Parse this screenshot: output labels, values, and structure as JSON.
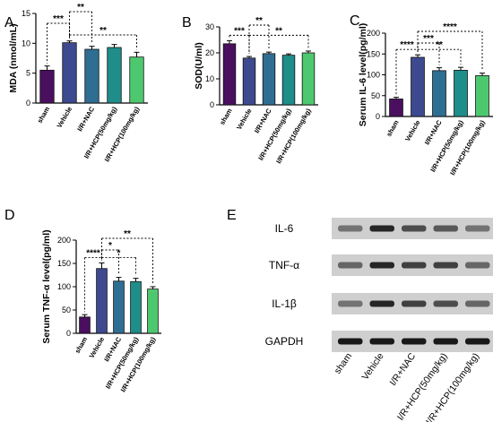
{
  "colors": {
    "bars": [
      "#4a0f5f",
      "#3d4a8f",
      "#2f6e93",
      "#1f8d8a",
      "#4ec86f"
    ]
  },
  "chart_data": [
    {
      "panel": "A",
      "type": "bar",
      "ylabel": "MDA (nmol/mL)",
      "categories": [
        "sham",
        "Vehicle",
        "I/R+NAC",
        "I/R+HCP(50mg/kg)",
        "I/R+HCP(100mg/kg)"
      ],
      "values": [
        5.5,
        10.1,
        9.0,
        9.3,
        7.7
      ],
      "errors": [
        0.7,
        0.3,
        0.5,
        0.5,
        0.8
      ],
      "ylim": [
        0,
        15
      ],
      "yticks": [
        "0",
        "5",
        "10",
        "15"
      ],
      "comparisons": [
        {
          "from": 1,
          "to": 2,
          "label": "**"
        },
        {
          "from": 0,
          "to": 1,
          "label": "***"
        },
        {
          "from": 1,
          "to": 4,
          "label": "**"
        }
      ]
    },
    {
      "panel": "B",
      "type": "bar",
      "ylabel": "SOD(U/ml)",
      "categories": [
        "sham",
        "Vehicle",
        "I/R+NAC",
        "I/R+HCP(50mg/kg)",
        "I/R+HCP(100mg/kg)"
      ],
      "values": [
        23.5,
        18.0,
        19.7,
        19.1,
        20.0
      ],
      "errors": [
        1.2,
        0.6,
        0.6,
        0.5,
        0.7
      ],
      "ylim": [
        0,
        30
      ],
      "yticks": [
        "0",
        "10",
        "20",
        "30"
      ],
      "comparisons": [
        {
          "from": 1,
          "to": 2,
          "label": "**"
        },
        {
          "from": 0,
          "to": 1,
          "label": "***"
        },
        {
          "from": 1,
          "to": 4,
          "label": "**"
        }
      ]
    },
    {
      "panel": "C",
      "type": "bar",
      "ylabel": "Serum IL-6 level(pg/ml)",
      "categories": [
        "sham",
        "Vehicle",
        "I/R+NAC",
        "I/R+HCP(50mg/kg)",
        "I/R+HCP(100mg/kg)"
      ],
      "values": [
        42,
        142,
        110,
        111,
        98
      ],
      "errors": [
        4,
        6,
        7,
        7,
        6
      ],
      "ylim": [
        0,
        200
      ],
      "yticks": [
        "0",
        "50",
        "100",
        "150",
        "200"
      ],
      "comparisons": [
        {
          "from": 1,
          "to": 4,
          "label": "****"
        },
        {
          "from": 1,
          "to": 2,
          "label": "***"
        },
        {
          "from": 0,
          "to": 1,
          "label": "****"
        },
        {
          "from": 1,
          "to": 3,
          "label": "**"
        }
      ]
    },
    {
      "panel": "D",
      "type": "bar",
      "ylabel": "Serum TNF-α level(pg/ml)",
      "categories": [
        "sham",
        "Vehicle",
        "I/R+NAC",
        "I/R+HCP(50mg/kg)",
        "I/R+HCP(100mg/kg)"
      ],
      "values": [
        35,
        139,
        112,
        111,
        95
      ],
      "errors": [
        5,
        12,
        8,
        7,
        5
      ],
      "ylim": [
        0,
        200
      ],
      "yticks": [
        "0",
        "50",
        "100",
        "150",
        "200"
      ],
      "comparisons": [
        {
          "from": 1,
          "to": 4,
          "label": "**"
        },
        {
          "from": 1,
          "to": 2,
          "label": "*"
        },
        {
          "from": 0,
          "to": 1,
          "label": "****"
        },
        {
          "from": 1,
          "to": 3,
          "label": "*"
        }
      ]
    }
  ],
  "western_blot": {
    "panel": "E",
    "rows": [
      {
        "label": "IL-6",
        "intensity": [
          0.55,
          0.85,
          0.7,
          0.65,
          0.55
        ]
      },
      {
        "label": "TNF-α",
        "intensity": [
          0.6,
          0.85,
          0.75,
          0.75,
          0.6
        ]
      },
      {
        "label": "IL-1β",
        "intensity": [
          0.55,
          0.85,
          0.75,
          0.7,
          0.6
        ]
      },
      {
        "label": "GAPDH",
        "intensity": [
          0.9,
          0.9,
          0.9,
          0.9,
          0.9
        ]
      }
    ],
    "lanes": [
      "sham",
      "Vehicle",
      "I/R+NAC",
      "I/R+HCP(50mg/kg)",
      "I/R+HCP(100mg/kg)"
    ]
  }
}
